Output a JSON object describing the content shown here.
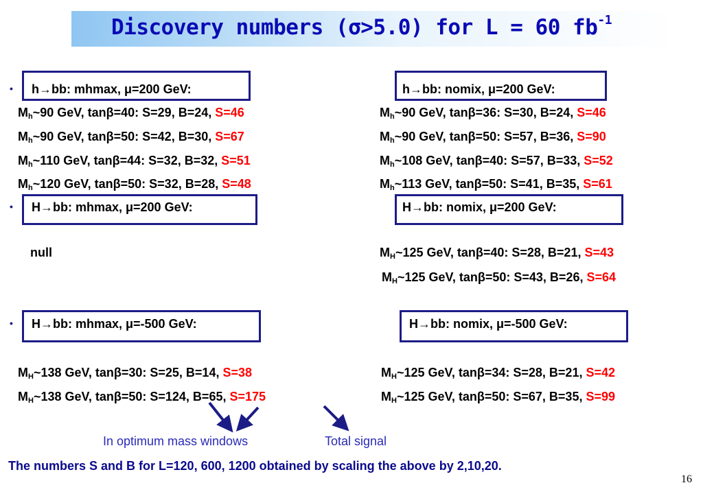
{
  "title": {
    "text": "Discovery numbers (σ>5.0) for L = 60 fb",
    "sup": "-1"
  },
  "sections": {
    "h_mhmax_header": "h→bb: mhmax, μ=200 GeV:",
    "h_nomix_header": "h→bb: nomix, μ=200 GeV:",
    "H_mhmax_200_header": "H→bb: mhmax, μ=200 GeV:",
    "H_nomix_200_header": "H→bb: nomix, μ=200 GeV:",
    "H_mhmax_500_header": "H→bb: mhmax, μ=-500 GeV:",
    "H_nomix_500_header": "H→bb: nomix, μ=-500 GeV:"
  },
  "rows": {
    "h_left": [
      {
        "m": "M",
        "sub": "h",
        "main": "~90 GeV, tanβ=40: S=29, B=24, ",
        "red": "S=46"
      },
      {
        "m": "M",
        "sub": "h",
        "main": "~90 GeV, tanβ=50: S=42, B=30, ",
        "red": "S=67"
      },
      {
        "m": "M",
        "sub": "h",
        "main": "~110 GeV, tanβ=44: S=32, B=32, ",
        "red": "S=51"
      },
      {
        "m": "M",
        "sub": "h",
        "main": "~120 GeV, tanβ=50: S=32, B=28, ",
        "red": "S=48"
      }
    ],
    "h_right": [
      {
        "m": "M",
        "sub": "h",
        "main": "~90 GeV, tanβ=36: S=30, B=24, ",
        "red": "S=46"
      },
      {
        "m": "M",
        "sub": "h",
        "main": "~90 GeV, tanβ=50: S=57, B=36, ",
        "red": "S=90"
      },
      {
        "m": "M",
        "sub": "h",
        "main": "~108 GeV, tanβ=40: S=57, B=33, ",
        "red": "S=52"
      },
      {
        "m": "M",
        "sub": "h",
        "main": "~113 GeV, tanβ=50: S=41, B=35, ",
        "red": "S=61"
      }
    ],
    "H200_left_null": "null",
    "H200_right": [
      {
        "m": "M",
        "sub": "H",
        "main": "~125 GeV, tanβ=40: S=28, B=21, ",
        "red": "S=43"
      },
      {
        "m": "M",
        "sub": "H",
        "main": "~125 GeV, tanβ=50: S=43, B=26, ",
        "red": "S=64"
      }
    ],
    "H500_left": [
      {
        "m": "M",
        "sub": "H",
        "main": "~138 GeV, tanβ=30: S=25, B=14, ",
        "red": "S=38"
      },
      {
        "m": "M",
        "sub": "H",
        "main": "~138 GeV, tanβ=50: S=124, B=65, ",
        "red": "S=175"
      }
    ],
    "H500_right": [
      {
        "m": "M",
        "sub": "H",
        "main": "~125 GeV, tanβ=34: S=28, B=21, ",
        "red": "S=42"
      },
      {
        "m": "M",
        "sub": "H",
        "main": "~125 GeV, tanβ=50: S=67, B=35, ",
        "red": "S=99"
      }
    ]
  },
  "notes": {
    "mass_windows": "In optimum mass windows",
    "total_signal": "Total signal"
  },
  "footer": "The numbers S and B for L=120, 600, 1200 obtained by scaling the above by 2,10,20.",
  "page_number": "16",
  "bullet": "•",
  "colors": {
    "title": "#0a0ab4",
    "box": "#1c1c86",
    "red": "#ff0000",
    "note": "#2a2ab6",
    "arrow": "#1c1c86"
  }
}
